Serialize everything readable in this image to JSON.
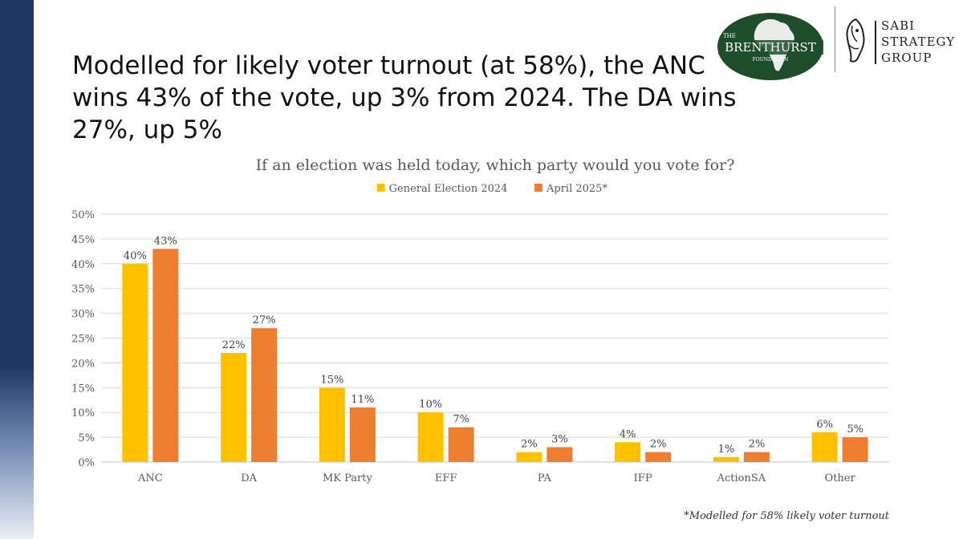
{
  "headline": {
    "line1": "Modelled for likely voter turnout (at 58%), the ANC",
    "line2": "wins 43% of the vote, up 3% from 2024. The DA wins 27%, up 5%"
  },
  "logos": {
    "brenthurst": {
      "small_top": "THE",
      "name": "BRENTHURST",
      "small_bottom": "FOUNDATION"
    },
    "sabi": {
      "line1": "SABI",
      "line2": "STRATEGY",
      "line3": "GROUP"
    }
  },
  "colors": {
    "band": "#1f3864",
    "series_2024": "#ffc000",
    "series_2025": "#ed7d31",
    "brenthurst_green": "#1e4d2b"
  },
  "chart_data": {
    "type": "bar",
    "title": "If an election was held today, which party would you vote for?",
    "categories": [
      "ANC",
      "DA",
      "MK Party",
      "EFF",
      "PA",
      "IFP",
      "ActionSA",
      "Other"
    ],
    "series": [
      {
        "name": "General Election 2024",
        "values": [
          40,
          22,
          15,
          10,
          2,
          4,
          1,
          6
        ],
        "color": "#ffc000"
      },
      {
        "name": "April 2025*",
        "values": [
          43,
          27,
          11,
          7,
          3,
          2,
          2,
          5
        ],
        "color": "#ed7d31"
      }
    ],
    "ylim": [
      0,
      50
    ],
    "yticks": [
      "0%",
      "5%",
      "10%",
      "15%",
      "20%",
      "25%",
      "30%",
      "35%",
      "40%",
      "45%",
      "50%"
    ],
    "value_suffix": "%",
    "grid": true,
    "legend": "top-center"
  },
  "footnote": "*Modelled for 58% likely voter turnout"
}
